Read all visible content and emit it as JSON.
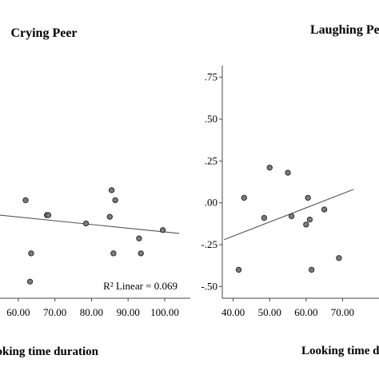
{
  "chart_data": [
    {
      "type": "scatter",
      "title": "Crying Peer",
      "xlabel": "Looking time duration",
      "x_tick_labels": [
        "60.00",
        "70.00",
        "80.00",
        "90.00",
        "100.00"
      ],
      "xlim": [
        55,
        107
      ],
      "ylim": [
        -0.55,
        0.85
      ],
      "grid": false,
      "points": [
        {
          "x": 62.0,
          "y": 0.04
        },
        {
          "x": 63.5,
          "y": -0.28
        },
        {
          "x": 63.2,
          "y": -0.45
        },
        {
          "x": 67.8,
          "y": -0.05
        },
        {
          "x": 68.2,
          "y": -0.05
        },
        {
          "x": 78.5,
          "y": -0.1
        },
        {
          "x": 85.0,
          "y": -0.06
        },
        {
          "x": 85.5,
          "y": 0.1
        },
        {
          "x": 86.5,
          "y": 0.04
        },
        {
          "x": 86.0,
          "y": -0.28
        },
        {
          "x": 93.0,
          "y": -0.19
        },
        {
          "x": 93.5,
          "y": -0.28
        },
        {
          "x": 99.5,
          "y": -0.14
        }
      ],
      "fit_line": {
        "x": [
          55,
          104
        ],
        "y": [
          -0.05,
          -0.16
        ]
      },
      "annotation": "R² Linear = 0.069"
    },
    {
      "type": "scatter",
      "title": "Laughing Peer",
      "xlabel": "Looking time duration",
      "x_tick_labels": [
        "40.00",
        "50.00",
        "60.00",
        "70.00"
      ],
      "y_tick_labels": [
        ".75",
        ".50",
        ".25",
        ".00",
        "-.25",
        "-.50"
      ],
      "xlim": [
        37,
        80
      ],
      "ylim": [
        -0.57,
        0.82
      ],
      "grid": false,
      "points": [
        {
          "x": 41.5,
          "y": -0.4
        },
        {
          "x": 43.0,
          "y": 0.03
        },
        {
          "x": 48.5,
          "y": -0.09
        },
        {
          "x": 50.0,
          "y": 0.21
        },
        {
          "x": 55.0,
          "y": 0.18
        },
        {
          "x": 56.0,
          "y": -0.08
        },
        {
          "x": 60.0,
          "y": -0.13
        },
        {
          "x": 60.5,
          "y": 0.03
        },
        {
          "x": 61.0,
          "y": -0.1
        },
        {
          "x": 61.5,
          "y": -0.4
        },
        {
          "x": 65.0,
          "y": -0.04
        },
        {
          "x": 69.0,
          "y": -0.33
        }
      ],
      "fit_line": {
        "x": [
          37.5,
          73
        ],
        "y": [
          -0.22,
          0.08
        ]
      }
    }
  ]
}
